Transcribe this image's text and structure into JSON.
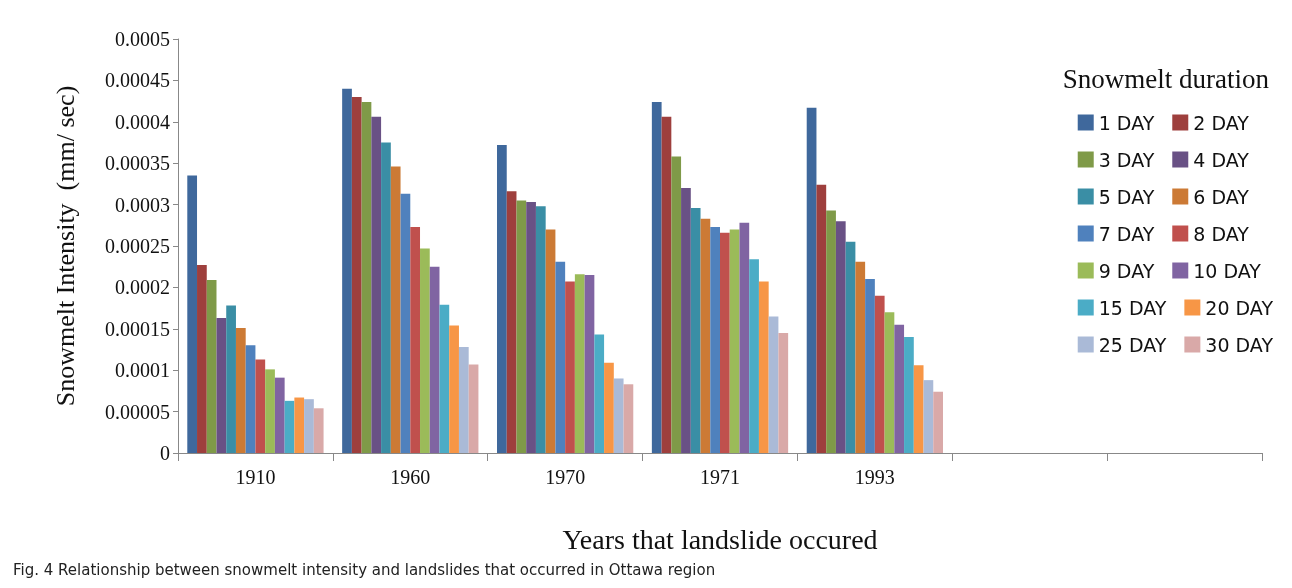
{
  "chart_data": {
    "type": "bar",
    "categories": [
      "1910",
      "1960",
      "1970",
      "1971",
      "1993",
      null,
      null
    ],
    "xlabel": "Years that landslide occured",
    "ylabel": "Snowmelt Intensity  (mm/ sec)",
    "legend_title": "Snowmelt duration",
    "legend": "top right",
    "grid": false,
    "ylim": [
      0,
      0.0005
    ],
    "yticks": [
      0,
      {
        "value": 5e-05,
        "label": "0.00005"
      },
      0.0001,
      0.00015,
      0.0002,
      0.00025,
      0.0003,
      0.00035,
      0.0004,
      0.00045,
      0.0005
    ],
    "annotations": [
      "Fig. 4 Relationship between snowmelt intensity and landslides that occurred in Ottawa region"
    ],
    "series": [
      {
        "name": "1 DAY",
        "color": "#3f689c",
        "values": [
          0.000335,
          0.00044,
          0.000372,
          0.000424,
          0.000417,
          null,
          null
        ]
      },
      {
        "name": "2 DAY",
        "color": "#9e3f3d",
        "values": [
          0.000227,
          0.00043,
          0.000316,
          0.000406,
          0.000324,
          null,
          null
        ]
      },
      {
        "name": "3 DAY",
        "color": "#7f9a48",
        "values": [
          0.000209,
          0.000424,
          0.000305,
          0.000358,
          0.000293,
          null,
          null
        ]
      },
      {
        "name": "4 DAY",
        "color": "#695185",
        "values": [
          0.000163,
          0.000406,
          0.000303,
          0.00032,
          0.00028,
          null,
          null
        ]
      },
      {
        "name": "5 DAY",
        "color": "#3a8ea5",
        "values": [
          0.000178,
          0.000375,
          0.000298,
          0.000296,
          0.000255,
          null,
          null
        ]
      },
      {
        "name": "6 DAY",
        "color": "#cc7a35",
        "values": [
          0.000151,
          0.000346,
          0.00027,
          0.000283,
          0.000231,
          null,
          null
        ]
      },
      {
        "name": "7 DAY",
        "color": "#4f81bd",
        "values": [
          0.00013,
          0.000313,
          0.000231,
          0.000273,
          0.00021,
          null,
          null
        ]
      },
      {
        "name": "8 DAY",
        "color": "#c0504d",
        "values": [
          0.000113,
          0.000273,
          0.000207,
          0.000266,
          0.00019,
          null,
          null
        ]
      },
      {
        "name": "9 DAY",
        "color": "#9bbb59",
        "values": [
          0.000101,
          0.000247,
          0.000216,
          0.00027,
          0.00017,
          null,
          null
        ]
      },
      {
        "name": "10 DAY",
        "color": "#8064a2",
        "values": [
          9.1e-05,
          0.000225,
          0.000215,
          0.000278,
          0.000155,
          null,
          null
        ]
      },
      {
        "name": "15 DAY",
        "color": "#4bacc6",
        "values": [
          6.3e-05,
          0.000179,
          0.000143,
          0.000234,
          0.00014,
          null,
          null
        ]
      },
      {
        "name": "20 DAY",
        "color": "#f79646",
        "values": [
          6.7e-05,
          0.000154,
          0.000109,
          0.000207,
          0.000106,
          null,
          null
        ]
      },
      {
        "name": "25 DAY",
        "color": "#aabad7",
        "values": [
          6.5e-05,
          0.000128,
          9e-05,
          0.000165,
          8.8e-05,
          null,
          null
        ]
      },
      {
        "name": "30 DAY",
        "color": "#d9a9a8",
        "values": [
          5.4e-05,
          0.000107,
          8.3e-05,
          0.000145,
          7.4e-05,
          null,
          null
        ]
      }
    ]
  }
}
